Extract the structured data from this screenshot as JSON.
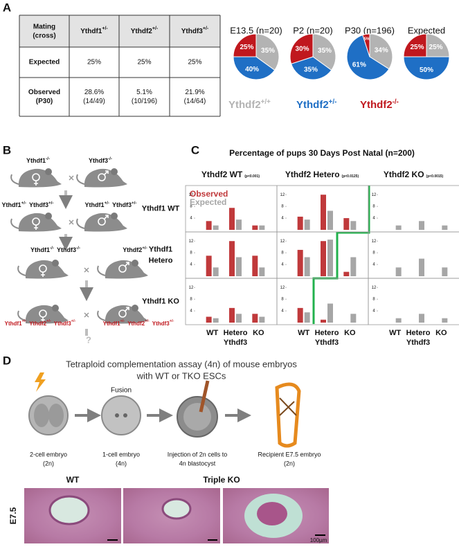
{
  "panel_a": {
    "label": "A",
    "table": {
      "header": [
        [
          "Mating",
          "(cross)"
        ],
        {
          "gene": "Ythdf1",
          "allele": "+/-"
        },
        {
          "gene": "Ythdf2",
          "allele": "+/-"
        },
        {
          "gene": "Ythdf3",
          "allele": "+/-"
        }
      ],
      "rows": [
        {
          "label": [
            "Expected"
          ],
          "cells": [
            [
              "25%"
            ],
            [
              "25%"
            ],
            [
              "25%"
            ]
          ]
        },
        {
          "label": [
            "Observed",
            "(P30)"
          ],
          "cells": [
            [
              "28.6%",
              "(14/49)"
            ],
            [
              "5.1%",
              "(10/196)"
            ],
            [
              "21.9%",
              "(14/64)"
            ]
          ]
        }
      ]
    },
    "chart_data": {
      "type": "pie",
      "legend": [
        {
          "gene": "Ythdf2",
          "allele": "+/+",
          "color": "#b3b3b3"
        },
        {
          "gene": "Ythdf2",
          "allele": "+/-",
          "color": "#1f6fc5"
        },
        {
          "gene": "Ythdf2",
          "allele": "-/-",
          "color": "#c0181e"
        }
      ],
      "pies": [
        {
          "title": "E13.5 (n=20)",
          "values": [
            35,
            40,
            25
          ],
          "value_labels": [
            "35%",
            "40%",
            "25%"
          ]
        },
        {
          "title": "P2 (n=20)",
          "values": [
            35,
            35,
            30
          ],
          "value_labels": [
            "35%",
            "35%",
            "30%"
          ]
        },
        {
          "title": "P30 (n=196)",
          "values": [
            34,
            61,
            5
          ],
          "value_labels": [
            "34%",
            "61%",
            "5%"
          ]
        },
        {
          "title": "Expected",
          "values": [
            25,
            50,
            25
          ],
          "value_labels": [
            "25%",
            "50%",
            "25%"
          ]
        }
      ]
    }
  },
  "panel_b": {
    "label": "B",
    "parents": [
      [
        {
          "gene": "Ythdf1",
          "allele": "-/-"
        }
      ],
      [
        {
          "gene": "Ythdf3",
          "allele": "-/-"
        }
      ],
      [
        {
          "gene": "Ythdf1",
          "allele": "+/-"
        },
        {
          "gene": "Ythdf3",
          "allele": "+/-"
        }
      ],
      [
        {
          "gene": "Ythdf1",
          "allele": "+/-"
        },
        {
          "gene": "Ythdf3",
          "allele": "+/-"
        }
      ],
      [
        {
          "gene": "Ythdf1",
          "allele": "-/-"
        },
        {
          "gene": "Ythdf3",
          "allele": "-/-"
        }
      ],
      [
        {
          "gene": "Ythdf2",
          "allele": "+/-"
        }
      ]
    ],
    "offspring": {
      "color": "#c0181e",
      "labels": [
        [
          {
            "gene": "Ythdf1",
            "allele": "+/-"
          },
          {
            "gene": "Ythdf2",
            "allele": "+/-"
          },
          {
            "gene": "Ythdf3",
            "allele": "+/-"
          }
        ],
        [
          {
            "gene": "Ythdf1",
            "allele": "+/-"
          },
          {
            "gene": "Ythdf2",
            "allele": "+/-"
          },
          {
            "gene": "Ythdf3",
            "allele": "+/-"
          }
        ]
      ]
    },
    "unknown": "?"
  },
  "panel_c": {
    "label": "C",
    "chart_data": {
      "type": "bar",
      "title": "Percentage of pups 30 Days Post Natal (n=200)",
      "legend": [
        {
          "name": "Observed",
          "color": "#c0393b"
        },
        {
          "name": "Expected",
          "color": "#a6a6a6"
        }
      ],
      "ylim": [
        0,
        13
      ],
      "yticks": [
        4,
        8,
        12
      ],
      "columns": [
        {
          "name": "Ythdf2 WT",
          "p": "(p<0.001)",
          "x_labels": [
            "WT",
            "Hetero",
            "KO"
          ],
          "x_title": "Ythdf3"
        },
        {
          "name": "Ythdf2 Hetero",
          "p": "(p<0.0125)",
          "x_labels": [
            "WT",
            "Hetero",
            "KO"
          ],
          "x_title": "Ythdf3"
        },
        {
          "name": "Ythdf2 KO",
          "p": "(p<0.0015)",
          "x_labels": [
            "WT",
            "Hetero",
            "KO"
          ],
          "x_title": "Ythdf3"
        }
      ],
      "rows": [
        [
          "Ythdf1 WT"
        ],
        [
          "Ythdf1",
          "Hetero"
        ],
        [
          "Ythdf1 KO"
        ]
      ],
      "cells": [
        [
          {
            "observed": [
              3,
              7.5,
              1.5
            ],
            "expected": [
              1.5,
              3.5,
              1.5
            ]
          },
          {
            "observed": [
              4.5,
              12,
              4
            ],
            "expected": [
              3.5,
              6.5,
              3
            ]
          },
          {
            "observed": [
              0,
              0,
              0
            ],
            "expected": [
              1.5,
              3,
              1.5
            ]
          }
        ],
        [
          {
            "observed": [
              7,
              12,
              7
            ],
            "expected": [
              3,
              6.5,
              3
            ]
          },
          {
            "observed": [
              9,
              12,
              1.5
            ],
            "expected": [
              6.5,
              12.5,
              6.5
            ]
          },
          {
            "observed": [
              0,
              0,
              0
            ],
            "expected": [
              3,
              6,
              3
            ]
          }
        ],
        [
          {
            "observed": [
              2,
              5,
              3
            ],
            "expected": [
              1.5,
              3,
              2
            ]
          },
          {
            "observed": [
              5,
              1,
              0
            ],
            "expected": [
              3.5,
              6.5,
              3
            ]
          },
          {
            "observed": [
              0,
              0,
              0
            ],
            "expected": [
              1.5,
              3,
              1.5
            ]
          }
        ]
      ]
    }
  },
  "panel_d": {
    "label": "D",
    "title": [
      "Tetraploid complementation assay (4n) of mouse embryos",
      "with WT or TKO ESCs"
    ],
    "fusion": "Fusion",
    "steps": [
      [
        "2-cell embryo",
        "(2n)"
      ],
      [
        "1-cell embryo",
        "(4n)"
      ],
      [
        "Injection of 2n cells to",
        "4n blastocyst"
      ],
      [
        "Recipient E7.5 embryo",
        "(2n)"
      ]
    ],
    "image_labels": [
      "WT",
      "Triple KO"
    ],
    "stage": "E7.5",
    "scale_bar": "100µm"
  }
}
